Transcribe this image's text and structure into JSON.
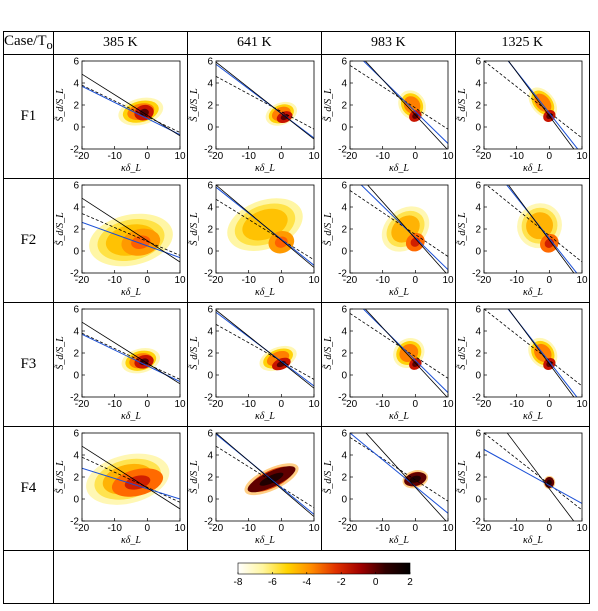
{
  "header": {
    "corner_label": "Case/T",
    "corner_sub": "o",
    "columns": [
      "385 K",
      "641 K",
      "983 K",
      "1325 K"
    ]
  },
  "rows": [
    "F1",
    "F2",
    "F3",
    "F4"
  ],
  "colorbar": {
    "ticks": [
      "-8",
      "-6",
      "-4",
      "-2",
      "0",
      "2"
    ],
    "range": [
      -8,
      2
    ],
    "colors": [
      "#ffffff",
      "#fff6a0",
      "#ffd400",
      "#ff8a00",
      "#e03000",
      "#a00000",
      "#300000",
      "#000000"
    ]
  },
  "chart_data": [
    {
      "type": "scatter",
      "row": "F1",
      "column": "385 K",
      "xlabel": "κδ_L",
      "ylabel": "S̃_d/S_L",
      "xlim": [
        -20,
        10
      ],
      "ylim": [
        -2,
        6
      ],
      "xticks": [
        "-20",
        "-10",
        "0",
        "10"
      ],
      "yticks": [
        "-2",
        "0",
        "2",
        "4",
        "6"
      ],
      "lines": {
        "solid_black": [
          4.8,
          -0.8
        ],
        "blue": [
          3.7,
          -0.7
        ],
        "dashed": [
          3.8,
          -0.5
        ]
      },
      "cloud": {
        "cx": -2,
        "cy": 1.4,
        "rx": 7,
        "ry": 1.2,
        "core_x": -1,
        "core_y": 1.3,
        "core_rx": 3,
        "core_ry": 0.7,
        "angle": -14,
        "intensity": "high"
      }
    },
    {
      "type": "scatter",
      "row": "F1",
      "column": "641 K",
      "xlabel": "κδ_L",
      "ylabel": "S̃_d/S_L",
      "xlim": [
        -20,
        10
      ],
      "ylim": [
        -2,
        6
      ],
      "xticks": [
        "-20",
        "-10",
        "0",
        "10"
      ],
      "yticks": [
        "-2",
        "0",
        "2",
        "4",
        "6"
      ],
      "lines": {
        "solid_black": [
          5.9,
          -1.1
        ],
        "blue": [
          5.7,
          -1.0
        ],
        "dashed": [
          4.6,
          -0.2
        ]
      },
      "cloud": {
        "cx": 0,
        "cy": 1.2,
        "rx": 5,
        "ry": 1.0,
        "core_x": 1,
        "core_y": 0.9,
        "core_rx": 2.5,
        "core_ry": 0.5,
        "angle": -22,
        "intensity": "high"
      }
    },
    {
      "type": "scatter",
      "row": "F1",
      "column": "983 K",
      "xlabel": "κδ_L",
      "ylabel": "S̃_d/S_L",
      "xlim": [
        -20,
        10
      ],
      "ylim": [
        -2,
        6
      ],
      "xticks": [
        "-20",
        "-10",
        "0",
        "10"
      ],
      "yticks": [
        "-2",
        "0",
        "2",
        "4",
        "6"
      ],
      "lines": {
        "solid_black": [
          7.5,
          -2.1
        ],
        "blue": [
          7.2,
          -1.5
        ],
        "dashed": [
          5.6,
          -0.2
        ]
      },
      "cloud": {
        "cx": -1,
        "cy": 2.0,
        "rx": 4,
        "ry": 1.4,
        "core_x": 0,
        "core_y": 1.0,
        "core_rx": 2,
        "core_ry": 0.5,
        "angle": -35,
        "intensity": "high"
      }
    },
    {
      "type": "scatter",
      "row": "F1",
      "column": "1325 K",
      "xlabel": "κδ_L",
      "ylabel": "S̃_d/S_L",
      "xlim": [
        -20,
        10
      ],
      "ylim": [
        -2,
        6
      ],
      "xticks": [
        "-20",
        "-10",
        "0",
        "10"
      ],
      "yticks": [
        "-2",
        "0",
        "2",
        "4",
        "6"
      ],
      "lines": {
        "solid_black": [
          9.0,
          -3.0
        ],
        "blue": [
          8.8,
          -2.5
        ],
        "dashed": [
          6.0,
          -1.0
        ]
      },
      "cloud": {
        "cx": -2,
        "cy": 2.2,
        "rx": 3.5,
        "ry": 1.6,
        "core_x": 0,
        "core_y": 1.0,
        "core_rx": 2,
        "core_ry": 0.5,
        "angle": -40,
        "intensity": "high"
      }
    },
    {
      "type": "scatter",
      "row": "F2",
      "column": "385 K",
      "xlabel": "κδ_L",
      "ylabel": "S̃_d/S_L",
      "xlim": [
        -20,
        10
      ],
      "ylim": [
        -2,
        6
      ],
      "xticks": [
        "-20",
        "-10",
        "0",
        "10"
      ],
      "yticks": [
        "-2",
        "0",
        "2",
        "4",
        "6"
      ],
      "lines": {
        "solid_black": [
          4.8,
          -1.0
        ],
        "blue": [
          2.6,
          -0.6
        ],
        "dashed": [
          3.4,
          -0.4
        ]
      },
      "cloud": {
        "cx": -5,
        "cy": 1.0,
        "rx": 13,
        "ry": 2.3,
        "core_x": -2,
        "core_y": 0.8,
        "core_rx": 6,
        "core_ry": 1.2,
        "angle": -12,
        "intensity": "low"
      }
    },
    {
      "type": "scatter",
      "row": "F2",
      "column": "641 K",
      "xlabel": "κδ_L",
      "ylabel": "S̃_d/S_L",
      "xlim": [
        -20,
        10
      ],
      "ylim": [
        -2,
        6
      ],
      "xticks": [
        "-20",
        "-10",
        "0",
        "10"
      ],
      "yticks": [
        "-2",
        "0",
        "2",
        "4",
        "6"
      ],
      "lines": {
        "solid_black": [
          6.0,
          -1.5
        ],
        "blue": [
          5.8,
          -1.3
        ],
        "dashed": [
          4.7,
          -0.8
        ]
      },
      "cloud": {
        "cx": -5,
        "cy": 2.4,
        "rx": 12,
        "ry": 2.2,
        "core_x": 0,
        "core_y": 0.8,
        "core_rx": 4,
        "core_ry": 1.0,
        "angle": -20,
        "intensity": "low"
      }
    },
    {
      "type": "scatter",
      "row": "F2",
      "column": "983 K",
      "xlabel": "κδ_L",
      "ylabel": "S̃_d/S_L",
      "xlim": [
        -20,
        10
      ],
      "ylim": [
        -2,
        6
      ],
      "xticks": [
        "-20",
        "-10",
        "0",
        "10"
      ],
      "yticks": [
        "-2",
        "0",
        "2",
        "4",
        "6"
      ],
      "lines": {
        "solid_black": [
          7.8,
          -2.2
        ],
        "blue": [
          7.0,
          -1.7
        ],
        "dashed": [
          5.5,
          -0.5
        ]
      },
      "cloud": {
        "cx": -3,
        "cy": 2.0,
        "rx": 8,
        "ry": 1.8,
        "core_x": 0,
        "core_y": 0.8,
        "core_rx": 3,
        "core_ry": 0.8,
        "angle": -40,
        "intensity": "mid"
      }
    },
    {
      "type": "scatter",
      "row": "F2",
      "column": "1325 K",
      "xlabel": "κδ_L",
      "ylabel": "S̃_d/S_L",
      "xlim": [
        -20,
        10
      ],
      "ylim": [
        -2,
        6
      ],
      "xticks": [
        "-20",
        "-10",
        "0",
        "10"
      ],
      "yticks": [
        "-2",
        "0",
        "2",
        "4",
        "6"
      ],
      "lines": {
        "solid_black": [
          9.0,
          -3.0
        ],
        "blue": [
          8.6,
          -2.6
        ],
        "dashed": [
          6.2,
          -1.0
        ]
      },
      "cloud": {
        "cx": -3,
        "cy": 2.3,
        "rx": 7,
        "ry": 2.0,
        "core_x": 0,
        "core_y": 0.7,
        "core_rx": 3,
        "core_ry": 0.8,
        "angle": -45,
        "intensity": "mid"
      }
    },
    {
      "type": "scatter",
      "row": "F3",
      "column": "385 K",
      "xlabel": "κδ_L",
      "ylabel": "S̃_d/S_L",
      "xlim": [
        -20,
        10
      ],
      "ylim": [
        -2,
        6
      ],
      "xticks": [
        "-20",
        "-10",
        "0",
        "10"
      ],
      "yticks": [
        "-2",
        "0",
        "2",
        "4",
        "6"
      ],
      "lines": {
        "solid_black": [
          4.8,
          -0.8
        ],
        "blue": [
          3.7,
          -0.6
        ],
        "dashed": [
          3.8,
          -0.4
        ]
      },
      "cloud": {
        "cx": -2,
        "cy": 1.3,
        "rx": 6,
        "ry": 1.1,
        "core_x": -1,
        "core_y": 1.2,
        "core_rx": 3,
        "core_ry": 0.6,
        "angle": -14,
        "intensity": "high"
      }
    },
    {
      "type": "scatter",
      "row": "F3",
      "column": "641 K",
      "xlabel": "κδ_L",
      "ylabel": "S̃_d/S_L",
      "xlim": [
        -20,
        10
      ],
      "ylim": [
        -2,
        6
      ],
      "xticks": [
        "-20",
        "-10",
        "0",
        "10"
      ],
      "yticks": [
        "-2",
        "0",
        "2",
        "4",
        "6"
      ],
      "lines": {
        "solid_black": [
          5.9,
          -1.2
        ],
        "blue": [
          5.7,
          -1.0
        ],
        "dashed": [
          4.6,
          -0.4
        ]
      },
      "cloud": {
        "cx": -1,
        "cy": 1.5,
        "rx": 6,
        "ry": 1.0,
        "core_x": 0,
        "core_y": 1.0,
        "core_rx": 3,
        "core_ry": 0.5,
        "angle": -22,
        "intensity": "high"
      }
    },
    {
      "type": "scatter",
      "row": "F3",
      "column": "983 K",
      "xlabel": "κδ_L",
      "ylabel": "S̃_d/S_L",
      "xlim": [
        -20,
        10
      ],
      "ylim": [
        -2,
        6
      ],
      "xticks": [
        "-20",
        "-10",
        "0",
        "10"
      ],
      "yticks": [
        "-2",
        "0",
        "2",
        "4",
        "6"
      ],
      "lines": {
        "solid_black": [
          7.5,
          -2.1
        ],
        "blue": [
          7.2,
          -1.6
        ],
        "dashed": [
          5.6,
          -0.3
        ]
      },
      "cloud": {
        "cx": -2,
        "cy": 2.0,
        "rx": 5,
        "ry": 1.3,
        "core_x": 0,
        "core_y": 1.0,
        "core_rx": 2,
        "core_ry": 0.5,
        "angle": -35,
        "intensity": "high"
      }
    },
    {
      "type": "scatter",
      "row": "F3",
      "column": "1325 K",
      "xlabel": "κδ_L",
      "ylabel": "S̃_d/S_L",
      "xlim": [
        -20,
        10
      ],
      "ylim": [
        -2,
        6
      ],
      "xticks": [
        "-20",
        "-10",
        "0",
        "10"
      ],
      "yticks": [
        "-2",
        "0",
        "2",
        "4",
        "6"
      ],
      "lines": {
        "solid_black": [
          9.0,
          -3.0
        ],
        "blue": [
          8.8,
          -2.6
        ],
        "dashed": [
          6.0,
          -1.0
        ]
      },
      "cloud": {
        "cx": -2,
        "cy": 2.0,
        "rx": 4,
        "ry": 1.5,
        "core_x": 0,
        "core_y": 1.0,
        "core_rx": 2,
        "core_ry": 0.5,
        "angle": -40,
        "intensity": "high"
      }
    },
    {
      "type": "scatter",
      "row": "F4",
      "column": "385 K",
      "xlabel": "κδ_L",
      "ylabel": "S̃_d/S_L",
      "xlim": [
        -20,
        10
      ],
      "ylim": [
        -2,
        6
      ],
      "xticks": [
        "-20",
        "-10",
        "0",
        "10"
      ],
      "yticks": [
        "-2",
        "0",
        "2",
        "4",
        "6"
      ],
      "lines": {
        "solid_black": [
          4.8,
          -0.9
        ],
        "blue": [
          2.8,
          0.0
        ],
        "dashed": [
          3.8,
          -0.3
        ]
      },
      "cloud": {
        "cx": -6,
        "cy": 1.8,
        "rx": 13,
        "ry": 2.2,
        "core_x": -3,
        "core_y": 1.5,
        "core_rx": 8,
        "core_ry": 1.2,
        "angle": -14,
        "intensity": "mid"
      }
    },
    {
      "type": "scatter",
      "row": "F4",
      "column": "641 K",
      "xlabel": "κδ_L",
      "ylabel": "S̃_d/S_L",
      "xlim": [
        -20,
        10
      ],
      "ylim": [
        -2,
        6
      ],
      "xticks": [
        "-20",
        "-10",
        "0",
        "10"
      ],
      "yticks": [
        "-2",
        "0",
        "2",
        "4",
        "6"
      ],
      "lines": {
        "solid_black": [
          6.0,
          -1.6
        ],
        "blue": [
          5.9,
          -1.4
        ],
        "dashed": [
          4.8,
          -0.8
        ]
      },
      "cloud": {
        "cx": -3,
        "cy": 1.8,
        "rx": 9,
        "ry": 1.0,
        "core_x": -3,
        "core_y": 1.8,
        "core_rx": 8,
        "core_ry": 0.7,
        "angle": -25,
        "intensity": "dark"
      }
    },
    {
      "type": "scatter",
      "row": "F4",
      "column": "983 K",
      "xlabel": "κδ_L",
      "ylabel": "S̃_d/S_L",
      "xlim": [
        -20,
        10
      ],
      "ylim": [
        -2,
        6
      ],
      "xticks": [
        "-20",
        "-10",
        "0",
        "10"
      ],
      "yticks": [
        "-2",
        "0",
        "2",
        "4",
        "6"
      ],
      "lines": {
        "solid_black": [
          7.6,
          -2.2
        ],
        "blue": [
          6.0,
          -1.3
        ],
        "dashed": [
          5.6,
          -0.2
        ]
      },
      "cloud": {
        "cx": 0,
        "cy": 1.8,
        "rx": 4,
        "ry": 0.8,
        "core_x": 0,
        "core_y": 1.8,
        "core_rx": 3.5,
        "core_ry": 0.6,
        "angle": -15,
        "intensity": "dark"
      }
    },
    {
      "type": "scatter",
      "row": "F4",
      "column": "1325 K",
      "xlabel": "κδ_L",
      "ylabel": "S̃_d/S_L",
      "xlim": [
        -20,
        10
      ],
      "ylim": [
        -2,
        6
      ],
      "xticks": [
        "-20",
        "-10",
        "0",
        "10"
      ],
      "yticks": [
        "-2",
        "0",
        "2",
        "4",
        "6"
      ],
      "lines": {
        "solid_black": [
          8.8,
          -3.0
        ],
        "blue": [
          4.5,
          -0.4
        ],
        "dashed": [
          6.0,
          -1.0
        ]
      },
      "cloud": {
        "cx": 0,
        "cy": 1.5,
        "rx": 1.8,
        "ry": 0.6,
        "core_x": 0,
        "core_y": 1.5,
        "core_rx": 1.5,
        "core_ry": 0.5,
        "angle": 0,
        "intensity": "dark"
      }
    }
  ]
}
